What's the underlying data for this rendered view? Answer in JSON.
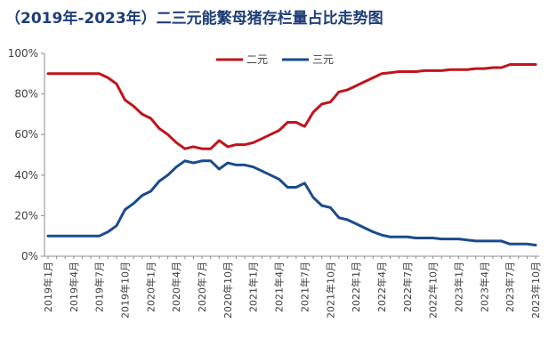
{
  "chart_data": {
    "type": "line",
    "title": "（2019年-2023年）二三元能繁母猪存栏量占比走势图",
    "xlabel": "",
    "ylabel": "",
    "ylim": [
      0,
      100
    ],
    "y_ticks": [
      "0%",
      "20%",
      "40%",
      "60%",
      "80%",
      "100%"
    ],
    "grid": false,
    "legend_position": "top-right",
    "x_tick_labels": [
      "2019年1月",
      "2019年4月",
      "2019年7月",
      "2019年10月",
      "2020年1月",
      "2020年4月",
      "2020年7月",
      "2020年10月",
      "2021年1月",
      "2021年4月",
      "2021年7月",
      "2021年10月",
      "2022年1月",
      "2022年4月",
      "2022年7月",
      "2022年10月",
      "2023年1月",
      "2023年4月",
      "2023年7月",
      "2023年10月"
    ],
    "x": [
      "2019-01",
      "2019-02",
      "2019-03",
      "2019-04",
      "2019-05",
      "2019-06",
      "2019-07",
      "2019-08",
      "2019-09",
      "2019-10",
      "2019-11",
      "2019-12",
      "2020-01",
      "2020-02",
      "2020-03",
      "2020-04",
      "2020-05",
      "2020-06",
      "2020-07",
      "2020-08",
      "2020-09",
      "2020-10",
      "2020-11",
      "2020-12",
      "2021-01",
      "2021-02",
      "2021-03",
      "2021-04",
      "2021-05",
      "2021-06",
      "2021-07",
      "2021-08",
      "2021-09",
      "2021-10",
      "2021-11",
      "2021-12",
      "2022-01",
      "2022-02",
      "2022-03",
      "2022-04",
      "2022-05",
      "2022-06",
      "2022-07",
      "2022-08",
      "2022-09",
      "2022-10",
      "2022-11",
      "2022-12",
      "2023-01",
      "2023-02",
      "2023-03",
      "2023-04",
      "2023-05",
      "2023-06",
      "2023-07",
      "2023-08",
      "2023-09",
      "2023-10"
    ],
    "series": [
      {
        "name": "二元",
        "color": "#c0141c",
        "values": [
          90,
          90,
          90,
          90,
          90,
          90,
          90,
          88,
          85,
          77,
          74,
          70,
          68,
          63,
          60,
          56,
          53,
          54,
          53,
          53,
          57,
          54,
          55,
          55,
          56,
          58,
          60,
          62,
          66,
          66,
          64,
          71,
          75,
          76,
          81,
          82,
          84,
          86,
          88,
          90,
          90.5,
          91,
          91,
          91,
          91.5,
          91.5,
          91.5,
          92,
          92,
          92,
          92.5,
          92.5,
          93,
          93,
          94.5,
          94.5,
          94.5,
          94.5
        ]
      },
      {
        "name": "三元",
        "color": "#1a4b8c",
        "values": [
          10,
          10,
          10,
          10,
          10,
          10,
          10,
          12,
          15,
          23,
          26,
          30,
          32,
          37,
          40,
          44,
          47,
          46,
          47,
          47,
          43,
          46,
          45,
          45,
          44,
          42,
          40,
          38,
          34,
          34,
          36,
          29,
          25,
          24,
          19,
          18,
          16,
          14,
          12,
          10.5,
          9.5,
          9.5,
          9.5,
          9,
          9,
          9,
          8.5,
          8.5,
          8.5,
          8,
          7.5,
          7.5,
          7.5,
          7.5,
          6,
          6,
          6,
          5.5
        ]
      }
    ]
  }
}
